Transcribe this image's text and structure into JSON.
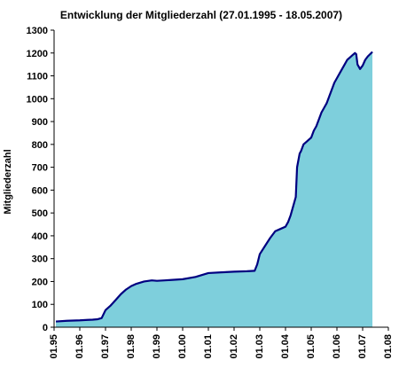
{
  "chart_data": {
    "type": "area",
    "title": "Entwicklung der Mitgliederzahl (27.01.1995 - 18.05.2007)",
    "xlabel": "",
    "ylabel": "Mitgliederzahl",
    "x_tick_labels": [
      "01.95",
      "01.96",
      "01.97",
      "01.98",
      "01.99",
      "01.00",
      "01.01",
      "01.02",
      "01.03",
      "01.04",
      "01.05",
      "01.06",
      "01.07",
      "01.08"
    ],
    "y_tick_labels": [
      "0",
      "100",
      "200",
      "300",
      "400",
      "500",
      "600",
      "700",
      "800",
      "900",
      "1000",
      "1100",
      "1200",
      "1300"
    ],
    "xlim": [
      1995.0,
      2008.0
    ],
    "ylim": [
      0,
      1300
    ],
    "grid": false,
    "colors": {
      "fill": "#7ecfdc",
      "line": "#000080"
    },
    "series": [
      {
        "x": [
          1995.07,
          1995.5,
          1996.0,
          1996.3,
          1996.5,
          1996.7,
          1996.85,
          1997.0,
          1997.2,
          1997.4,
          1997.6,
          1997.8,
          1998.0,
          1998.2,
          1998.5,
          1998.8,
          1999.0,
          1999.3,
          1999.6,
          2000.0,
          2000.5,
          2001.0,
          2001.5,
          2002.0,
          2002.5,
          2002.8,
          2002.9,
          2003.0,
          2003.2,
          2003.4,
          2003.6,
          2003.8,
          2004.0,
          2004.1,
          2004.2,
          2004.3,
          2004.4,
          2004.45,
          2004.5,
          2004.55,
          2004.6,
          2004.7,
          2004.8,
          2004.9,
          2005.0,
          2005.1,
          2005.2,
          2005.3,
          2005.4,
          2005.5,
          2005.6,
          2005.7,
          2005.8,
          2005.9,
          2006.0,
          2006.1,
          2006.2,
          2006.3,
          2006.4,
          2006.5,
          2006.6,
          2006.7,
          2006.75,
          2006.8,
          2006.9,
          2007.0,
          2007.1,
          2007.2,
          2007.38
        ],
        "y": [
          25,
          28,
          30,
          32,
          33,
          35,
          40,
          75,
          95,
          120,
          145,
          165,
          180,
          190,
          200,
          205,
          203,
          205,
          207,
          210,
          220,
          237,
          240,
          243,
          245,
          247,
          275,
          320,
          355,
          390,
          420,
          430,
          440,
          460,
          490,
          530,
          570,
          700,
          730,
          760,
          770,
          800,
          810,
          820,
          830,
          860,
          880,
          910,
          940,
          960,
          980,
          1010,
          1040,
          1070,
          1090,
          1110,
          1130,
          1150,
          1170,
          1180,
          1190,
          1200,
          1195,
          1150,
          1130,
          1145,
          1170,
          1185,
          1205
        ]
      }
    ]
  }
}
